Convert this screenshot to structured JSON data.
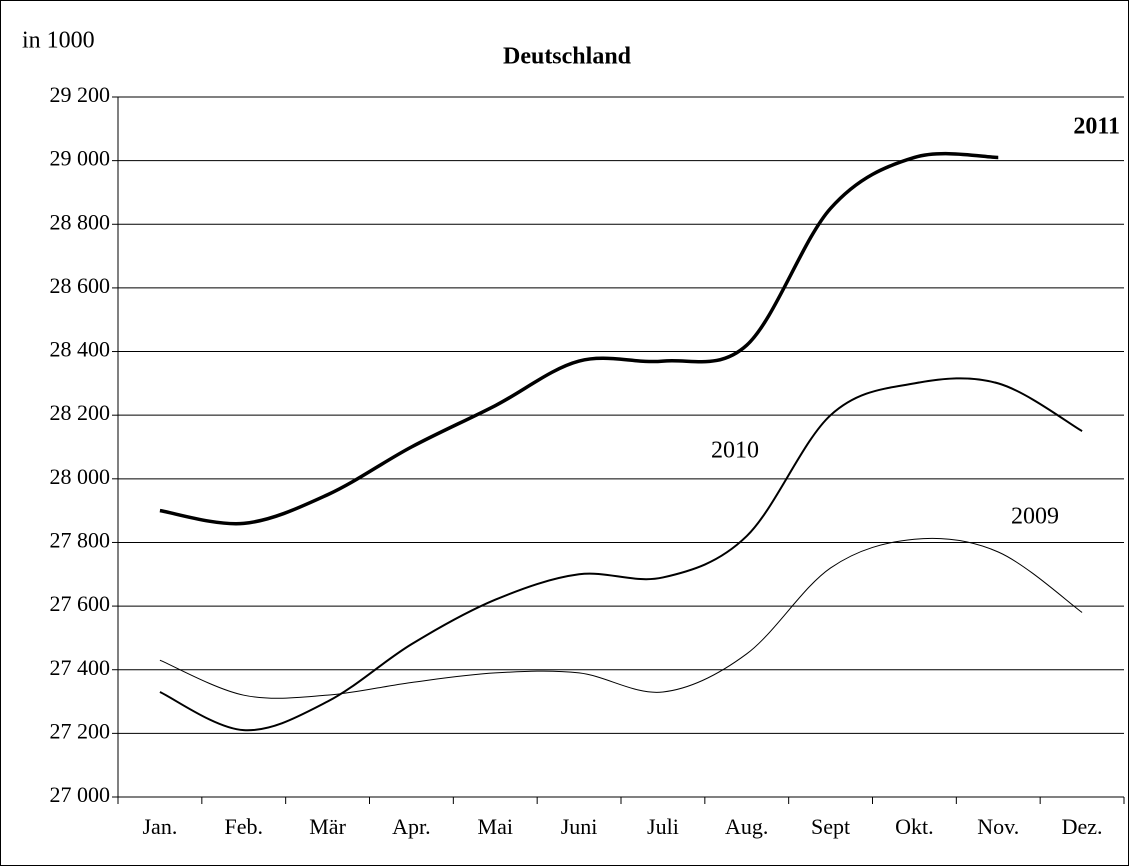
{
  "chart_data": {
    "type": "line",
    "title": "Deutschland",
    "ylabel": "in 1000",
    "categories": [
      "Jan.",
      "Feb.",
      "Mär",
      "Apr.",
      "Mai",
      "Juni",
      "Juli",
      "Aug.",
      "Sept",
      "Okt.",
      "Nov.",
      "Dez."
    ],
    "series": [
      {
        "name": "2011",
        "color": "#000000",
        "values": [
          27900,
          27860,
          27950,
          28100,
          28230,
          28370,
          28370,
          28420,
          28850,
          29010,
          29010,
          null
        ]
      },
      {
        "name": "2010",
        "color": "#000000",
        "values": [
          27330,
          27210,
          27300,
          27480,
          27620,
          27700,
          27690,
          27820,
          28200,
          28300,
          28300,
          28150
        ]
      },
      {
        "name": "2009",
        "color": "#000000",
        "values": [
          27430,
          27320,
          27320,
          27360,
          27390,
          27390,
          27330,
          27450,
          27720,
          27810,
          27770,
          27580
        ]
      }
    ],
    "ylim": [
      27000,
      29200
    ],
    "yticks": [
      {
        "value": 27000,
        "label": "27 000"
      },
      {
        "value": 27200,
        "label": "27 200"
      },
      {
        "value": 27400,
        "label": "27 400"
      },
      {
        "value": 27600,
        "label": "27 600"
      },
      {
        "value": 27800,
        "label": "27 800"
      },
      {
        "value": 28000,
        "label": "28 000"
      },
      {
        "value": 28200,
        "label": "28 200"
      },
      {
        "value": 28400,
        "label": "28 400"
      },
      {
        "value": 28600,
        "label": "28 600"
      },
      {
        "value": 28800,
        "label": "28 800"
      },
      {
        "value": 29000,
        "label": "29 000"
      },
      {
        "value": 29200,
        "label": "29 200"
      }
    ],
    "grid": true
  }
}
